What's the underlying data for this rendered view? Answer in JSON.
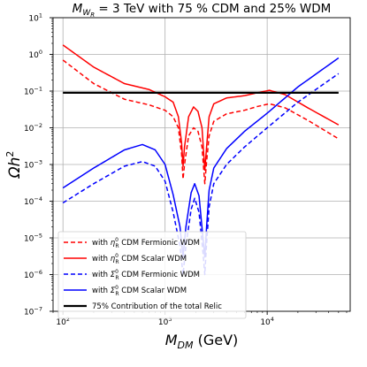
{
  "chart_data": {
    "type": "line",
    "title": "M_{W_R} = 3 TeV with 75 % CDM and 25% WDM",
    "title_parts": {
      "pre": "M",
      "sub": "W",
      "subsub": "R",
      "post": " = 3 TeV with 75 % CDM and 25% WDM"
    },
    "xlabel": "M_{DM} (GeV)",
    "xlabel_parts": {
      "pre": "M",
      "sub": "DM",
      "post": " (GeV)"
    },
    "ylabel": "Ωh^2",
    "ylabel_parts": {
      "pre": "Ωh",
      "sup": "2"
    },
    "xscale": "log",
    "yscale": "log",
    "xlim": [
      80,
      65000
    ],
    "ylim": [
      1e-07,
      10
    ],
    "grid": true,
    "legend_position": "lower-left",
    "x_ticks": [
      {
        "value": 100,
        "base": "10",
        "exp": "2"
      },
      {
        "value": 1000,
        "base": "10",
        "exp": "3"
      },
      {
        "value": 10000,
        "base": "10",
        "exp": "4"
      }
    ],
    "y_ticks": [
      {
        "value": 1e-07,
        "base": "10",
        "exp": "−7"
      },
      {
        "value": 1e-06,
        "base": "10",
        "exp": "−6"
      },
      {
        "value": 1e-05,
        "base": "10",
        "exp": "−5"
      },
      {
        "value": 0.0001,
        "base": "10",
        "exp": "−4"
      },
      {
        "value": 0.001,
        "base": "10",
        "exp": "−3"
      },
      {
        "value": 0.01,
        "base": "10",
        "exp": "−2"
      },
      {
        "value": 0.1,
        "base": "10",
        "exp": "−1"
      },
      {
        "value": 1,
        "base": "10",
        "exp": "0"
      },
      {
        "value": 10,
        "base": "10",
        "exp": "1"
      }
    ],
    "series": [
      {
        "name": "with η_R^0 CDM Fermionic WDM",
        "legend": {
          "pre": "with ",
          "sym": "η",
          "sup": "0",
          "sub": "R",
          "post": " CDM Fermionic WDM"
        },
        "color": "#ff0000",
        "dash": "dashed",
        "points": [
          [
            100,
            0.7
          ],
          [
            200,
            0.16
          ],
          [
            400,
            0.06
          ],
          [
            700,
            0.042
          ],
          [
            1000,
            0.03
          ],
          [
            1200,
            0.02
          ],
          [
            1350,
            0.01
          ],
          [
            1450,
            0.002
          ],
          [
            1500,
            0.0004
          ],
          [
            1550,
            0.001
          ],
          [
            1700,
            0.006
          ],
          [
            1900,
            0.01
          ],
          [
            2100,
            0.008
          ],
          [
            2300,
            0.003
          ],
          [
            2450,
            0.0003
          ],
          [
            2550,
            0.0012
          ],
          [
            2700,
            0.006
          ],
          [
            3000,
            0.015
          ],
          [
            4000,
            0.024
          ],
          [
            6000,
            0.03
          ],
          [
            8000,
            0.038
          ],
          [
            10500,
            0.045
          ],
          [
            15000,
            0.035
          ],
          [
            25000,
            0.016
          ],
          [
            50000,
            0.005
          ]
        ]
      },
      {
        "name": "with η_R^0 CDM Scalar WDM",
        "legend": {
          "pre": "with ",
          "sym": "η",
          "sup": "0",
          "sub": "R",
          "post": " CDM Scalar WDM"
        },
        "color": "#ff0000",
        "dash": "solid",
        "points": [
          [
            100,
            1.8
          ],
          [
            200,
            0.45
          ],
          [
            400,
            0.16
          ],
          [
            700,
            0.11
          ],
          [
            1000,
            0.07
          ],
          [
            1200,
            0.05
          ],
          [
            1350,
            0.02
          ],
          [
            1450,
            0.004
          ],
          [
            1500,
            0.0009
          ],
          [
            1550,
            0.003
          ],
          [
            1700,
            0.02
          ],
          [
            1900,
            0.037
          ],
          [
            2100,
            0.028
          ],
          [
            2300,
            0.01
          ],
          [
            2450,
            0.0007
          ],
          [
            2550,
            0.003
          ],
          [
            2700,
            0.02
          ],
          [
            3000,
            0.045
          ],
          [
            4000,
            0.065
          ],
          [
            6000,
            0.075
          ],
          [
            8000,
            0.09
          ],
          [
            10500,
            0.105
          ],
          [
            15000,
            0.08
          ],
          [
            25000,
            0.035
          ],
          [
            50000,
            0.012
          ]
        ]
      },
      {
        "name": "with Σ_R^0 CDM Fermionic WDM",
        "legend": {
          "pre": "with ",
          "sym": "Σ",
          "sup": "0",
          "sub": "R",
          "post": " CDM Fermionic WDM"
        },
        "color": "#0000ff",
        "dash": "dashed",
        "points": [
          [
            100,
            9e-05
          ],
          [
            200,
            0.0003
          ],
          [
            400,
            0.0009
          ],
          [
            600,
            0.0012
          ],
          [
            800,
            0.0009
          ],
          [
            1000,
            0.00035
          ],
          [
            1200,
            5e-05
          ],
          [
            1400,
            6e-06
          ],
          [
            1500,
            1e-06
          ],
          [
            1600,
            6e-06
          ],
          [
            1800,
            6e-05
          ],
          [
            1950,
            0.00012
          ],
          [
            2150,
            5e-05
          ],
          [
            2350,
            4e-06
          ],
          [
            2450,
            1e-06
          ],
          [
            2550,
            7e-06
          ],
          [
            2700,
            7e-05
          ],
          [
            3000,
            0.0003
          ],
          [
            4000,
            0.001
          ],
          [
            6000,
            0.003
          ],
          [
            10000,
            0.01
          ],
          [
            20000,
            0.05
          ],
          [
            50000,
            0.3
          ]
        ]
      },
      {
        "name": "with Σ_R^0 CDM Scalar WDM",
        "legend": {
          "pre": "with ",
          "sym": "Σ",
          "sup": "0",
          "sub": "R",
          "post": " CDM Scalar WDM"
        },
        "color": "#0000ff",
        "dash": "solid",
        "points": [
          [
            100,
            0.00023
          ],
          [
            200,
            0.0008
          ],
          [
            400,
            0.0025
          ],
          [
            600,
            0.0035
          ],
          [
            800,
            0.0025
          ],
          [
            1000,
            0.001
          ],
          [
            1200,
            0.00015
          ],
          [
            1400,
            2e-05
          ],
          [
            1500,
            3e-06
          ],
          [
            1600,
            2e-05
          ],
          [
            1800,
            0.00017
          ],
          [
            1950,
            0.0003
          ],
          [
            2150,
            0.00014
          ],
          [
            2350,
            1e-05
          ],
          [
            2450,
            3e-06
          ],
          [
            2550,
            2e-05
          ],
          [
            2700,
            0.0002
          ],
          [
            3000,
            0.0008
          ],
          [
            4000,
            0.0027
          ],
          [
            6000,
            0.008
          ],
          [
            10000,
            0.025
          ],
          [
            20000,
            0.13
          ],
          [
            50000,
            0.8
          ]
        ]
      },
      {
        "name": "75% Contribution of the total Relic",
        "legend": {
          "pre": "75% Contribution of the total Relic"
        },
        "color": "#000000",
        "dash": "solid",
        "thick": true,
        "points": [
          [
            100,
            0.09
          ],
          [
            50000,
            0.09
          ]
        ]
      }
    ]
  }
}
